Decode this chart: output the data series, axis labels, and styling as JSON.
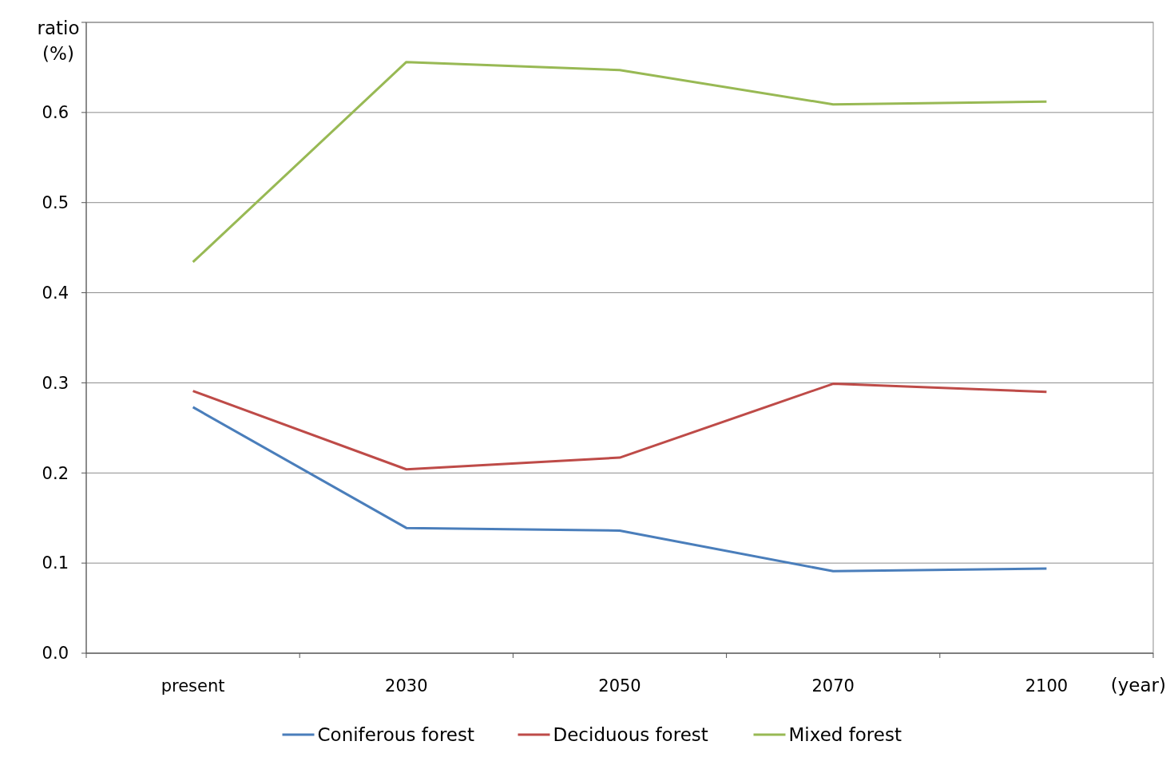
{
  "chart_data": {
    "type": "line",
    "xlabel": "(year)",
    "ylabel": "ratio (%)",
    "categories": [
      "present",
      "2030",
      "2050",
      "2070",
      "2100"
    ],
    "series": [
      {
        "name": "Coniferous forest",
        "color": "#4a7ebb",
        "values": [
          0.273,
          0.139,
          0.136,
          0.091,
          0.094
        ]
      },
      {
        "name": "Deciduous forest",
        "color": "#be4b48",
        "values": [
          0.291,
          0.204,
          0.217,
          0.299,
          0.29
        ]
      },
      {
        "name": "Mixed forest",
        "color": "#98b954",
        "values": [
          0.434,
          0.656,
          0.647,
          0.609,
          0.612
        ]
      }
    ],
    "ylim": [
      0,
      0.7
    ],
    "yticks": [
      {
        "value": 0,
        "label": "0.0"
      },
      {
        "value": 0.1,
        "label": "0.1"
      },
      {
        "value": 0.2,
        "label": "0.2"
      },
      {
        "value": 0.3,
        "label": "0.3"
      },
      {
        "value": 0.4,
        "label": "0.4"
      },
      {
        "value": 0.5,
        "label": "0.5"
      },
      {
        "value": 0.6,
        "label": "0.6"
      },
      {
        "value": 0.7,
        "label": null
      }
    ],
    "grid": "y",
    "legend": "bottom",
    "marker": "none",
    "line_style": "solid"
  }
}
